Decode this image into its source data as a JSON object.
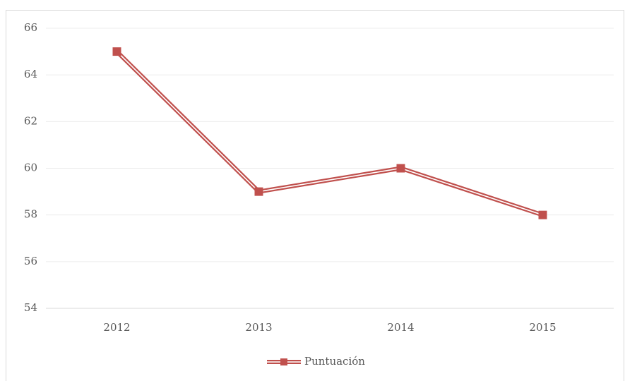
{
  "chart_data": {
    "type": "line",
    "categories": [
      "2012",
      "2013",
      "2014",
      "2015"
    ],
    "series": [
      {
        "name": "Puntuación",
        "color": "#c0504d",
        "values": [
          65,
          59,
          60,
          58
        ]
      }
    ],
    "ylim": [
      54,
      66
    ],
    "yticks": [
      54,
      56,
      58,
      60,
      62,
      64,
      66
    ],
    "grid": true,
    "legend": "bottom"
  }
}
